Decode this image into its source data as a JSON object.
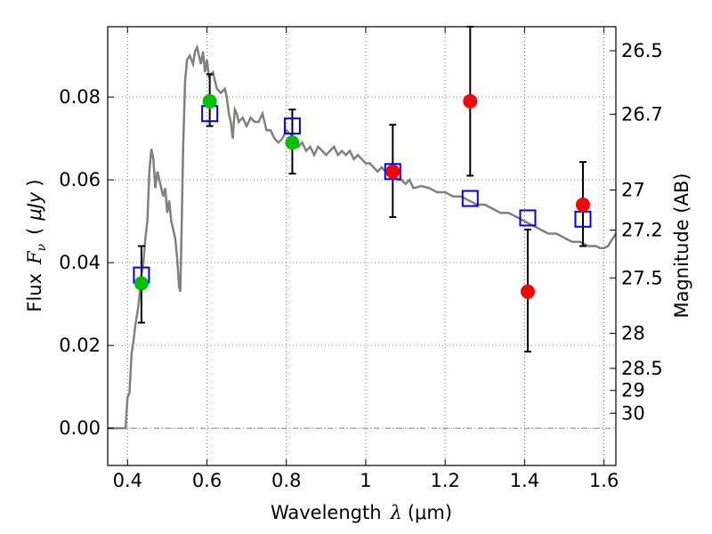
{
  "chart_data": {
    "type": "scatter",
    "xlabel_prefix": "Wavelength",
    "xlabel_lambda": "λ",
    "xlabel_unit": "(μm)",
    "ylabel_prefix": "Flux",
    "ylabel_symbol": "F",
    "ylabel_subscript": "ν",
    "ylabel_unit_open": "(",
    "ylabel_unit": "μJy",
    "ylabel_unit_close": ")",
    "y2label": "Magnitude (AB)",
    "xlim": [
      0.35,
      1.63
    ],
    "ylim": [
      -0.009,
      0.097
    ],
    "grid": true,
    "x_ticks": [
      {
        "value": 0.4,
        "label": "0.4"
      },
      {
        "value": 0.6,
        "label": "0.6"
      },
      {
        "value": 0.8,
        "label": "0.8"
      },
      {
        "value": 1.0,
        "label": "1"
      },
      {
        "value": 1.2,
        "label": "1.2"
      },
      {
        "value": 1.4,
        "label": "1.4"
      },
      {
        "value": 1.6,
        "label": "1.6"
      }
    ],
    "y_ticks": [
      {
        "value": 0.0,
        "label": "0.00"
      },
      {
        "value": 0.02,
        "label": "0.02"
      },
      {
        "value": 0.04,
        "label": "0.04"
      },
      {
        "value": 0.06,
        "label": "0.06"
      },
      {
        "value": 0.08,
        "label": "0.08"
      }
    ],
    "y2_ticks": [
      {
        "mag": 26.5,
        "label": "26.5"
      },
      {
        "mag": 26.7,
        "label": "26.7"
      },
      {
        "mag": 27.0,
        "label": "27"
      },
      {
        "mag": 27.2,
        "label": "27.2"
      },
      {
        "mag": 27.5,
        "label": "27.5"
      },
      {
        "mag": 28.0,
        "label": "28"
      },
      {
        "mag": 28.5,
        "label": "28.5"
      },
      {
        "mag": 29.0,
        "label": "29"
      },
      {
        "mag": 30.0,
        "label": "30"
      }
    ],
    "colors": {
      "sed": "#808080",
      "model": "#0000ff",
      "detection": "#00c000",
      "measurement": "#ff0000",
      "errorbar": "#000000",
      "grid": "#666666",
      "zero_line": "#555555"
    },
    "sed_curve": [
      [
        0.35,
        0.0
      ],
      [
        0.38,
        0.0
      ],
      [
        0.395,
        0.0
      ],
      [
        0.4,
        0.0075
      ],
      [
        0.405,
        0.0085
      ],
      [
        0.41,
        0.018
      ],
      [
        0.415,
        0.021
      ],
      [
        0.42,
        0.025
      ],
      [
        0.428,
        0.03
      ],
      [
        0.435,
        0.037
      ],
      [
        0.44,
        0.04
      ],
      [
        0.445,
        0.046
      ],
      [
        0.45,
        0.05
      ],
      [
        0.455,
        0.062
      ],
      [
        0.46,
        0.0675
      ],
      [
        0.465,
        0.065
      ],
      [
        0.47,
        0.058
      ],
      [
        0.475,
        0.062
      ],
      [
        0.48,
        0.06
      ],
      [
        0.485,
        0.058
      ],
      [
        0.49,
        0.056
      ],
      [
        0.495,
        0.058
      ],
      [
        0.5,
        0.052
      ],
      [
        0.505,
        0.055
      ],
      [
        0.51,
        0.05
      ],
      [
        0.515,
        0.048
      ],
      [
        0.52,
        0.046
      ],
      [
        0.525,
        0.041
      ],
      [
        0.53,
        0.034
      ],
      [
        0.533,
        0.033
      ],
      [
        0.537,
        0.052
      ],
      [
        0.54,
        0.068
      ],
      [
        0.545,
        0.084
      ],
      [
        0.55,
        0.089
      ],
      [
        0.557,
        0.09
      ],
      [
        0.565,
        0.088
      ],
      [
        0.57,
        0.091
      ],
      [
        0.575,
        0.092
      ],
      [
        0.58,
        0.09
      ],
      [
        0.585,
        0.088
      ],
      [
        0.59,
        0.091
      ],
      [
        0.595,
        0.086
      ],
      [
        0.6,
        0.089
      ],
      [
        0.605,
        0.085
      ],
      [
        0.615,
        0.086
      ],
      [
        0.625,
        0.082
      ],
      [
        0.635,
        0.081
      ],
      [
        0.645,
        0.082
      ],
      [
        0.65,
        0.08
      ],
      [
        0.655,
        0.076
      ],
      [
        0.66,
        0.074
      ],
      [
        0.665,
        0.07
      ],
      [
        0.67,
        0.077
      ],
      [
        0.675,
        0.076
      ],
      [
        0.68,
        0.074
      ],
      [
        0.69,
        0.075
      ],
      [
        0.7,
        0.073
      ],
      [
        0.71,
        0.075
      ],
      [
        0.72,
        0.074
      ],
      [
        0.73,
        0.074
      ],
      [
        0.74,
        0.076
      ],
      [
        0.75,
        0.072
      ],
      [
        0.76,
        0.072
      ],
      [
        0.77,
        0.07
      ],
      [
        0.78,
        0.069
      ],
      [
        0.79,
        0.07
      ],
      [
        0.8,
        0.072
      ],
      [
        0.81,
        0.071
      ],
      [
        0.82,
        0.07
      ],
      [
        0.83,
        0.068
      ],
      [
        0.84,
        0.069
      ],
      [
        0.85,
        0.067
      ],
      [
        0.86,
        0.068
      ],
      [
        0.87,
        0.066
      ],
      [
        0.88,
        0.068
      ],
      [
        0.89,
        0.067
      ],
      [
        0.9,
        0.066
      ],
      [
        0.91,
        0.067
      ],
      [
        0.92,
        0.068
      ],
      [
        0.93,
        0.066
      ],
      [
        0.94,
        0.067
      ],
      [
        0.95,
        0.066
      ],
      [
        0.96,
        0.067
      ],
      [
        0.97,
        0.065
      ],
      [
        0.98,
        0.066
      ],
      [
        0.99,
        0.065
      ],
      [
        1.0,
        0.064
      ],
      [
        1.01,
        0.064
      ],
      [
        1.02,
        0.063
      ],
      [
        1.03,
        0.062
      ],
      [
        1.04,
        0.063
      ],
      [
        1.05,
        0.062
      ],
      [
        1.06,
        0.061
      ],
      [
        1.07,
        0.061
      ],
      [
        1.08,
        0.06
      ],
      [
        1.09,
        0.06
      ],
      [
        1.1,
        0.059
      ],
      [
        1.11,
        0.06
      ],
      [
        1.12,
        0.058
      ],
      [
        1.14,
        0.0585
      ],
      [
        1.16,
        0.058
      ],
      [
        1.18,
        0.057
      ],
      [
        1.2,
        0.057
      ],
      [
        1.22,
        0.056
      ],
      [
        1.24,
        0.056
      ],
      [
        1.26,
        0.055
      ],
      [
        1.28,
        0.054
      ],
      [
        1.3,
        0.054
      ],
      [
        1.32,
        0.053
      ],
      [
        1.34,
        0.052
      ],
      [
        1.36,
        0.052
      ],
      [
        1.38,
        0.051
      ],
      [
        1.4,
        0.05
      ],
      [
        1.42,
        0.049
      ],
      [
        1.44,
        0.048
      ],
      [
        1.46,
        0.047
      ],
      [
        1.48,
        0.047
      ],
      [
        1.5,
        0.046
      ],
      [
        1.52,
        0.045
      ],
      [
        1.54,
        0.045
      ],
      [
        1.56,
        0.044
      ],
      [
        1.58,
        0.044
      ],
      [
        1.59,
        0.0435
      ],
      [
        1.6,
        0.0435
      ],
      [
        1.61,
        0.044
      ],
      [
        1.62,
        0.0455
      ],
      [
        1.63,
        0.047
      ]
    ],
    "model_points": [
      {
        "x": 0.435,
        "y": 0.037
      },
      {
        "x": 0.607,
        "y": 0.076
      },
      {
        "x": 0.815,
        "y": 0.073
      },
      {
        "x": 1.068,
        "y": 0.062
      },
      {
        "x": 1.263,
        "y": 0.0555
      },
      {
        "x": 1.408,
        "y": 0.0508
      },
      {
        "x": 1.547,
        "y": 0.0505
      }
    ],
    "detections": [
      {
        "x": 0.435,
        "y": 0.035,
        "err_lo": 0.0255,
        "err_hi": 0.044
      },
      {
        "x": 0.607,
        "y": 0.079,
        "err_lo": 0.073,
        "err_hi": 0.0855
      },
      {
        "x": 0.815,
        "y": 0.069,
        "err_lo": 0.0615,
        "err_hi": 0.077
      }
    ],
    "measurements": [
      {
        "x": 1.068,
        "y": 0.062,
        "err_lo": 0.051,
        "err_hi": 0.0733
      },
      {
        "x": 1.263,
        "y": 0.079,
        "err_lo": 0.061,
        "err_hi": 0.097
      },
      {
        "x": 1.408,
        "y": 0.033,
        "err_lo": 0.0185,
        "err_hi": 0.048
      },
      {
        "x": 1.547,
        "y": 0.054,
        "err_lo": 0.044,
        "err_hi": 0.0643
      }
    ]
  }
}
